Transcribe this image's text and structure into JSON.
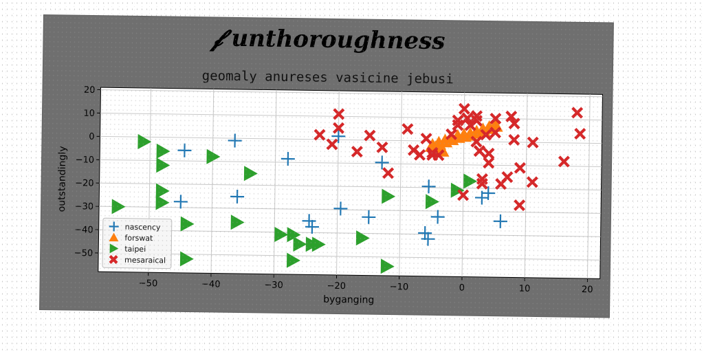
{
  "chart_data": {
    "type": "scatter",
    "suptitle": "unthoroughness",
    "title": "geomaly anureses vasicine jebusi",
    "xlabel": "byganging",
    "ylabel": "outstandingly",
    "xlim": [
      -58,
      22
    ],
    "ylim": [
      -58,
      21
    ],
    "xticks": [
      -50,
      -40,
      -30,
      -20,
      -10,
      0,
      10,
      20
    ],
    "yticks": [
      -50,
      -40,
      -30,
      -20,
      -10,
      0,
      10,
      20
    ],
    "grid": true,
    "legend_position": "lower-left",
    "series": [
      {
        "name": "nascency",
        "marker": "plus",
        "color": "#1f77b4",
        "x": [
          -44.5,
          -36.5,
          -28,
          -20,
          -19.5,
          -13,
          -5.5,
          -6,
          -5.5,
          -4,
          3,
          4,
          6,
          -36,
          -45,
          -24.5,
          -24,
          -15
        ],
        "y": [
          -5.5,
          -1,
          -8.5,
          1.5,
          -29.5,
          -9.5,
          -19.5,
          -39.5,
          -42,
          -32.5,
          -24,
          -22,
          -34,
          -25,
          -27.5,
          -35,
          -37.5,
          -33
        ]
      },
      {
        "name": "forswat",
        "marker": "triangle-up",
        "color": "#ff7f0e",
        "x": [
          -5,
          -4,
          -3,
          -2,
          -1,
          0,
          1,
          2,
          3,
          4,
          5,
          -4.5,
          -3.5
        ],
        "y": [
          -2,
          -1,
          0,
          1,
          2,
          2.5,
          3,
          4,
          5,
          6,
          7,
          -3,
          -4
        ]
      },
      {
        "name": "taipei",
        "marker": "triangle-right",
        "color": "#2ca02c",
        "x": [
          -51,
          -48,
          -48,
          -48,
          -48,
          -40,
          -34,
          -55,
          -44,
          -36,
          -44,
          -29,
          -27,
          -26,
          -27,
          -24,
          -23,
          -16,
          -12,
          -12,
          -5,
          -1,
          1
        ],
        "y": [
          -2,
          -6,
          -12,
          -23,
          -28,
          -8,
          -15,
          -30,
          -52,
          -36,
          -37,
          -41,
          -41,
          -45,
          -52,
          -45,
          -45,
          -42,
          -24,
          -54,
          -26,
          -21,
          -17
        ]
      },
      {
        "name": "mesaraical",
        "marker": "x",
        "color": "#d62728",
        "x": [
          -20,
          -20,
          -23,
          -21,
          -17,
          -15,
          -13,
          -12,
          -9,
          -8,
          -7,
          -6,
          -5,
          -5,
          -4,
          -2,
          -1,
          -1,
          0,
          0.5,
          1,
          2,
          2,
          2,
          2.5,
          3,
          3,
          3.5,
          4,
          4,
          5,
          5,
          6,
          7,
          7.5,
          8,
          8,
          9,
          9,
          11,
          11,
          16,
          18,
          18.5,
          0,
          2.5
        ],
        "y": [
          11,
          5,
          2,
          -2,
          -5,
          2,
          -3,
          -14,
          5,
          -4,
          -6,
          1,
          -6,
          -5,
          -6,
          3,
          7,
          9,
          14,
          10,
          7,
          11,
          9,
          0,
          -4,
          -16,
          -18,
          3,
          -9,
          -5,
          10,
          4,
          -18,
          -15,
          11,
          8,
          1,
          -11,
          -27,
          -17,
          0,
          -8,
          13,
          4,
          -23,
          -4
        ]
      }
    ]
  }
}
